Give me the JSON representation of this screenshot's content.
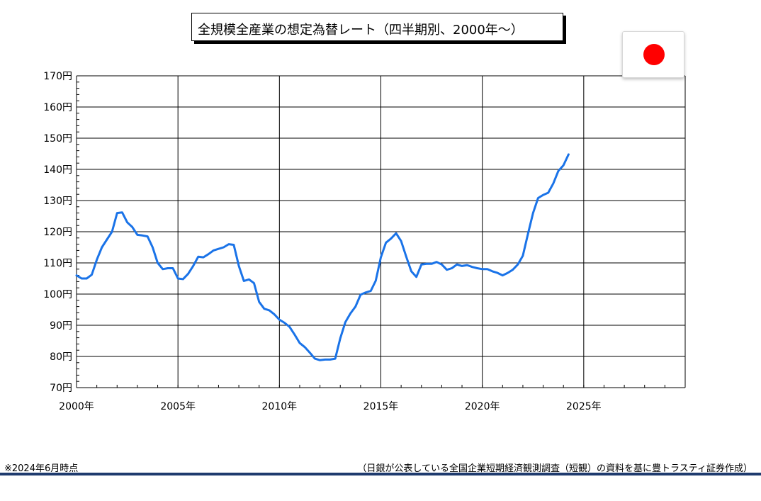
{
  "colors": {
    "line": "#1a73e8",
    "grid": "#000000",
    "flag_disc": "#ff0000",
    "rule": "#1f3b6e"
  },
  "chart_data": {
    "type": "line",
    "title": "全規模全産業の想定為替レート（四半期別、2000年～）",
    "xlabel": "",
    "ylabel": "",
    "xlim": [
      2000,
      2030
    ],
    "ylim": [
      70,
      170
    ],
    "x_ticks": [
      2000,
      2005,
      2010,
      2015,
      2020,
      2025
    ],
    "x_tick_labels": [
      "2000年",
      "2005年",
      "2010年",
      "2015年",
      "2020年",
      "2025年"
    ],
    "y_ticks": [
      70,
      80,
      90,
      100,
      110,
      120,
      130,
      140,
      150,
      160,
      170
    ],
    "y_tick_labels": [
      "70円",
      "80円",
      "90円",
      "100円",
      "110円",
      "120円",
      "130円",
      "140円",
      "150円",
      "160円",
      "170円"
    ],
    "grid": true,
    "series": [
      {
        "points": [
          [
            2000.0,
            106.0
          ],
          [
            2000.25,
            105.0
          ],
          [
            2000.5,
            105.0
          ],
          [
            2000.75,
            106.2
          ],
          [
            2001.0,
            111.0
          ],
          [
            2001.25,
            115.0
          ],
          [
            2001.5,
            117.5
          ],
          [
            2001.75,
            120.0
          ],
          [
            2002.0,
            126.0
          ],
          [
            2002.25,
            126.2
          ],
          [
            2002.5,
            123.0
          ],
          [
            2002.75,
            121.5
          ],
          [
            2003.0,
            119.0
          ],
          [
            2003.25,
            118.8
          ],
          [
            2003.5,
            118.5
          ],
          [
            2003.75,
            115.0
          ],
          [
            2004.0,
            110.0
          ],
          [
            2004.25,
            108.0
          ],
          [
            2004.5,
            108.3
          ],
          [
            2004.75,
            108.3
          ],
          [
            2005.0,
            105.0
          ],
          [
            2005.25,
            104.8
          ],
          [
            2005.5,
            106.5
          ],
          [
            2005.75,
            109.0
          ],
          [
            2006.0,
            112.0
          ],
          [
            2006.25,
            111.8
          ],
          [
            2006.5,
            112.8
          ],
          [
            2006.75,
            114.0
          ],
          [
            2007.0,
            114.5
          ],
          [
            2007.25,
            115.0
          ],
          [
            2007.5,
            116.0
          ],
          [
            2007.75,
            115.8
          ],
          [
            2008.0,
            109.0
          ],
          [
            2008.25,
            104.2
          ],
          [
            2008.5,
            104.7
          ],
          [
            2008.75,
            103.5
          ],
          [
            2009.0,
            97.5
          ],
          [
            2009.25,
            95.3
          ],
          [
            2009.5,
            94.8
          ],
          [
            2009.75,
            93.5
          ],
          [
            2010.0,
            91.8
          ],
          [
            2010.25,
            90.8
          ],
          [
            2010.5,
            89.5
          ],
          [
            2010.75,
            87.0
          ],
          [
            2011.0,
            84.3
          ],
          [
            2011.25,
            83.0
          ],
          [
            2011.5,
            81.2
          ],
          [
            2011.75,
            79.3
          ],
          [
            2012.0,
            78.8
          ],
          [
            2012.25,
            79.0
          ],
          [
            2012.5,
            79.0
          ],
          [
            2012.75,
            79.3
          ],
          [
            2013.0,
            85.8
          ],
          [
            2013.25,
            91.0
          ],
          [
            2013.5,
            93.8
          ],
          [
            2013.75,
            96.0
          ],
          [
            2014.0,
            99.8
          ],
          [
            2014.25,
            100.5
          ],
          [
            2014.5,
            101.0
          ],
          [
            2014.75,
            104.3
          ],
          [
            2015.0,
            111.8
          ],
          [
            2015.25,
            116.5
          ],
          [
            2015.5,
            117.8
          ],
          [
            2015.75,
            119.5
          ],
          [
            2016.0,
            117.0
          ],
          [
            2016.25,
            112.0
          ],
          [
            2016.5,
            107.3
          ],
          [
            2016.75,
            105.5
          ],
          [
            2017.0,
            109.5
          ],
          [
            2017.25,
            109.7
          ],
          [
            2017.5,
            109.7
          ],
          [
            2017.75,
            110.3
          ],
          [
            2018.0,
            109.5
          ],
          [
            2018.25,
            107.8
          ],
          [
            2018.5,
            108.3
          ],
          [
            2018.75,
            109.5
          ],
          [
            2019.0,
            109.0
          ],
          [
            2019.25,
            109.3
          ],
          [
            2019.5,
            108.7
          ],
          [
            2019.75,
            108.3
          ],
          [
            2020.0,
            108.0
          ],
          [
            2020.25,
            108.0
          ],
          [
            2020.5,
            107.3
          ],
          [
            2020.75,
            106.8
          ],
          [
            2021.0,
            106.0
          ],
          [
            2021.25,
            106.8
          ],
          [
            2021.5,
            107.8
          ],
          [
            2021.75,
            109.5
          ],
          [
            2022.0,
            112.3
          ],
          [
            2022.25,
            119.3
          ],
          [
            2022.5,
            126.0
          ],
          [
            2022.75,
            130.8
          ],
          [
            2023.0,
            131.8
          ],
          [
            2023.25,
            132.5
          ],
          [
            2023.5,
            135.5
          ],
          [
            2023.75,
            139.5
          ],
          [
            2024.0,
            141.3
          ],
          [
            2024.25,
            144.8
          ]
        ]
      }
    ]
  },
  "footnote": "※2024年6月時点",
  "source": "（日銀が公表している全国企業短期経済観測調査（短観）の資料を基に豊トラスティ証券作成）",
  "flag": {
    "icon": "japan-flag-icon"
  }
}
